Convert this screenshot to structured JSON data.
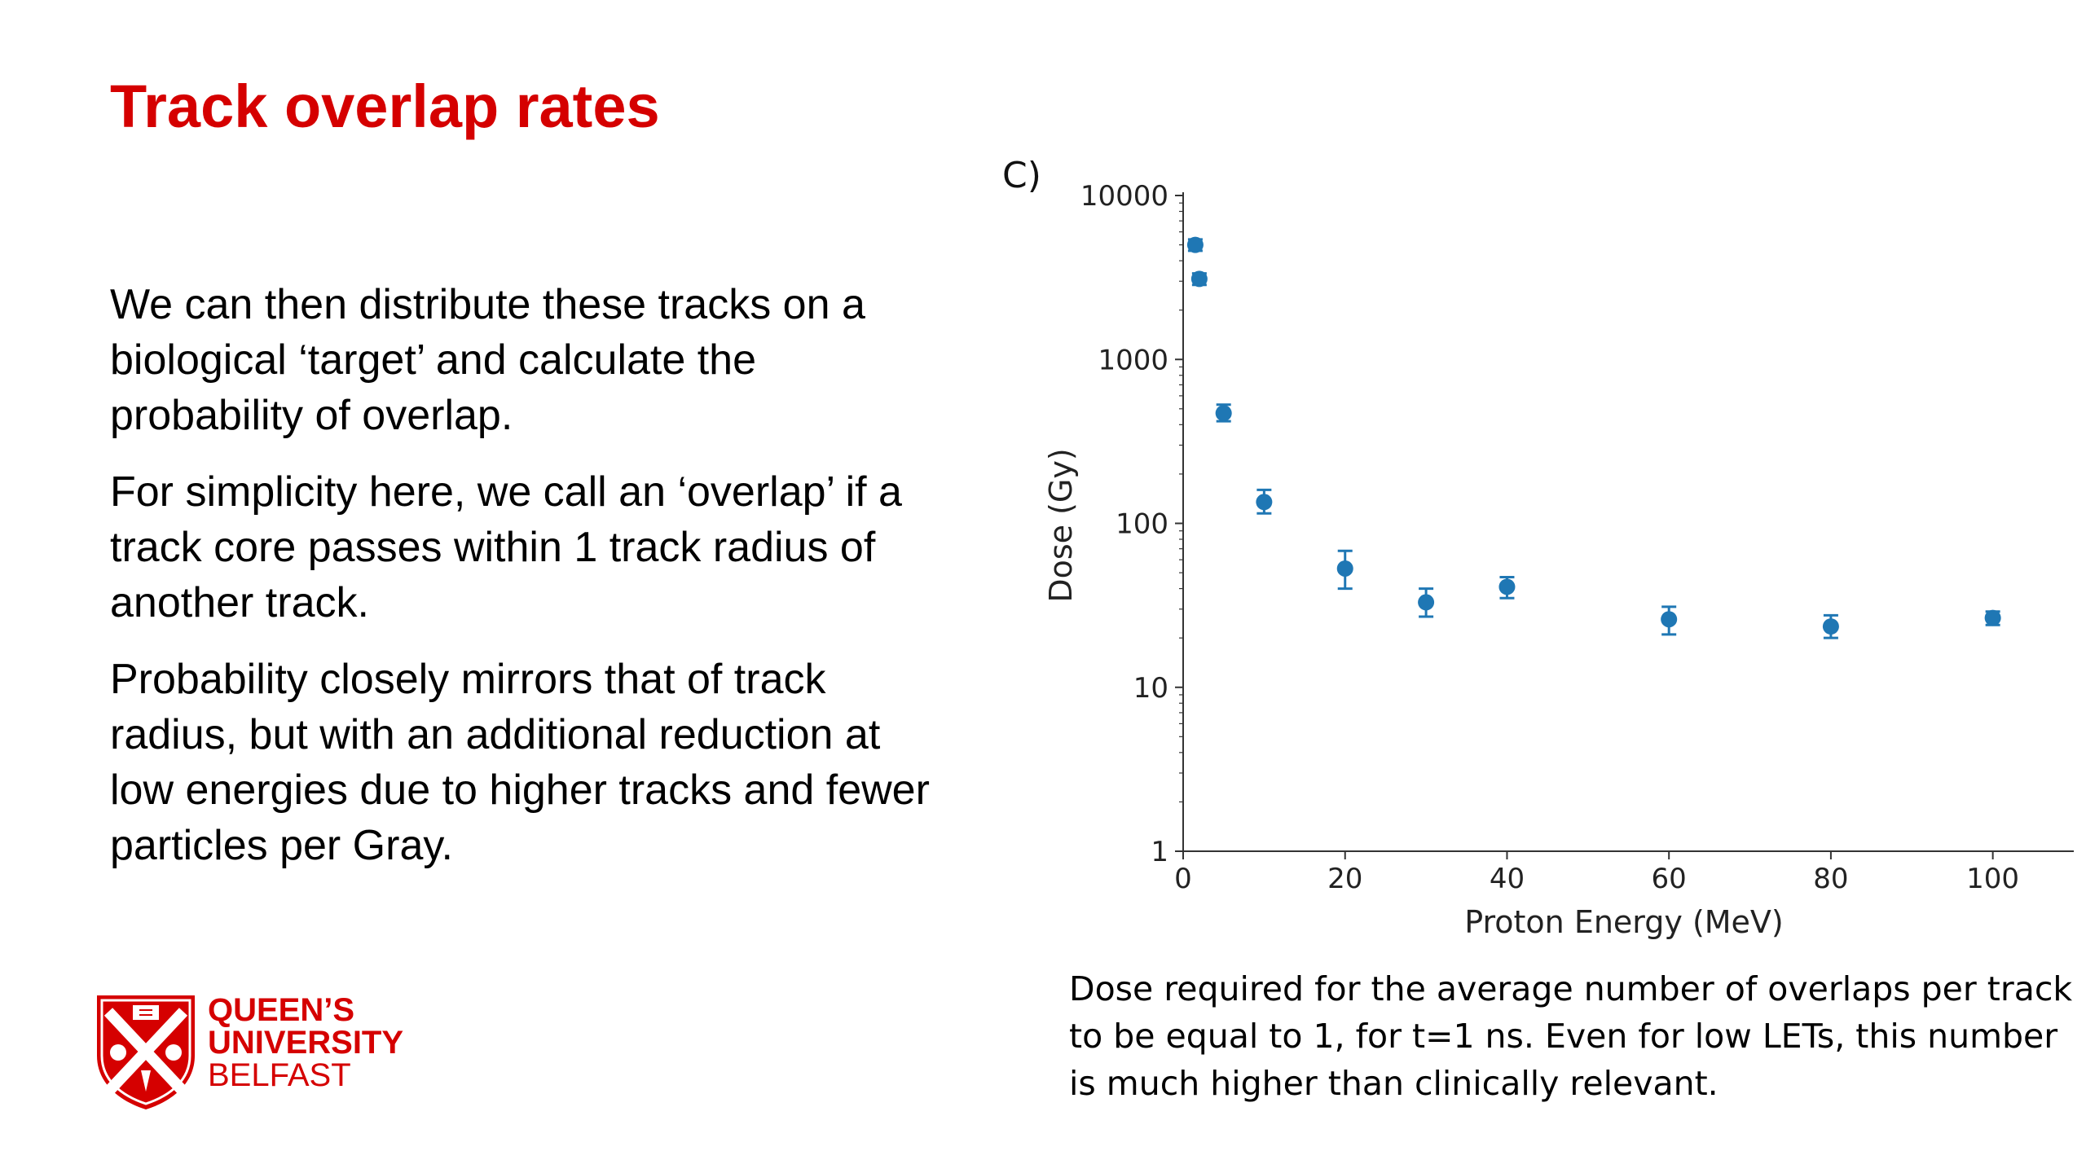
{
  "slide": {
    "title": "Track overlap rates",
    "paragraphs": [
      "We can then distribute these tracks on a biological ‘target’ and calculate the probability of overlap.",
      "For simplicity here, we call an ‘overlap’ if a track core passes within 1 track radius of another track.",
      "Probability closely mirrors that of track radius, but with an additional reduction at low energies due to higher tracks and fewer particles per Gray."
    ],
    "panel_label": "C)",
    "caption": "Dose required for the average number of overlaps per track to be equal to 1, for t=1 ns. Even for low LETs, this number is much higher than clinically relevant.",
    "logo": {
      "line1": "QUEEN’S",
      "line2": "UNIVERSITY",
      "line3": "BELFAST",
      "color": "#d50000"
    }
  },
  "chart_data": {
    "type": "scatter",
    "xlabel": "Proton Energy (MeV)",
    "ylabel": "Dose (Gy)",
    "xlim": [
      0,
      110
    ],
    "ylim": [
      1,
      10000
    ],
    "yscale": "log",
    "xticks": [
      0,
      20,
      40,
      60,
      80,
      100
    ],
    "yticks": [
      1,
      10,
      100,
      1000,
      10000
    ],
    "grid": false,
    "marker_color": "#1f77b4",
    "points": [
      {
        "x": 1.5,
        "y": 5000,
        "err_low": 4600,
        "err_high": 5400
      },
      {
        "x": 2,
        "y": 3100,
        "err_low": 2850,
        "err_high": 3350
      },
      {
        "x": 5,
        "y": 470,
        "err_low": 420,
        "err_high": 530
      },
      {
        "x": 10,
        "y": 135,
        "err_low": 115,
        "err_high": 160
      },
      {
        "x": 20,
        "y": 53,
        "err_low": 40,
        "err_high": 68
      },
      {
        "x": 30,
        "y": 33,
        "err_low": 27,
        "err_high": 40
      },
      {
        "x": 40,
        "y": 41,
        "err_low": 35,
        "err_high": 47
      },
      {
        "x": 60,
        "y": 26,
        "err_low": 21,
        "err_high": 31
      },
      {
        "x": 80,
        "y": 23.5,
        "err_low": 20,
        "err_high": 27.5
      },
      {
        "x": 100,
        "y": 26.5,
        "err_low": 24,
        "err_high": 29
      }
    ]
  }
}
